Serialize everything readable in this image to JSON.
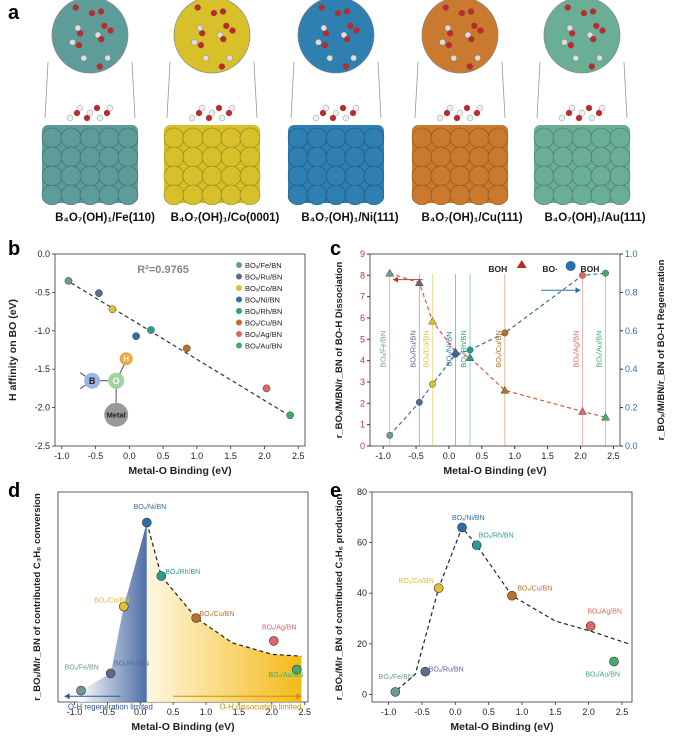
{
  "panel_letters": {
    "a": "a",
    "b": "b",
    "c": "c",
    "d": "d",
    "e": "e"
  },
  "panel_a": {
    "structures": [
      {
        "label": "B₄O₇(OH)₁/Fe(110)",
        "color": "#5e9c9a"
      },
      {
        "label": "B₄O₇(OH)₁/Co(0001)",
        "color": "#d8c02a"
      },
      {
        "label": "B₄O₇(OH)₁/Ni(111)",
        "color": "#2f7fb0"
      },
      {
        "label": "B₄O₇(OH)₁/Cu(111)",
        "color": "#c97a2e"
      },
      {
        "label": "B₄O₇(OH)₁/Au(111)",
        "color": "#6aae96"
      }
    ]
  },
  "chart_data": [
    {
      "id": "b",
      "type": "scatter",
      "xlabel": "Metal-O Binding (eV)",
      "ylabel": "H affinity on BO (eV)",
      "xlim": [
        -1.1,
        2.6
      ],
      "ylim": [
        -2.5,
        0.0
      ],
      "xticks": [
        "-1.0",
        "-0.5",
        "0.0",
        "0.5",
        "1.0",
        "1.5",
        "2.0",
        "2.5"
      ],
      "yticks": [
        "0.0",
        "-0.5",
        "-1.0",
        "-1.5",
        "-2.0",
        "-2.5"
      ],
      "r2": "R²=0.9765",
      "fit": {
        "x": [
          -0.95,
          2.4
        ],
        "y": [
          -0.33,
          -2.12
        ]
      },
      "points": [
        {
          "name": "BOₓ/Fe/BN",
          "x": -0.9,
          "y": -0.35,
          "color": "#6c9a96"
        },
        {
          "name": "BOₓ/Ru/BN",
          "x": -0.45,
          "y": -0.51,
          "color": "#5a6c8e"
        },
        {
          "name": "BOₓ/Co/BN",
          "x": -0.25,
          "y": -0.72,
          "color": "#e3be2d"
        },
        {
          "name": "BOₓ/Ni/BN",
          "x": 0.1,
          "y": -1.07,
          "color": "#2c6fa8"
        },
        {
          "name": "BOₓ/Rh/BN",
          "x": 0.32,
          "y": -0.99,
          "color": "#2b9b96"
        },
        {
          "name": "BOₓ/Cu/BN",
          "x": 0.85,
          "y": -1.23,
          "color": "#b8702a"
        },
        {
          "name": "BOₓ/Ag/BN",
          "x": 2.03,
          "y": -1.75,
          "color": "#e06666"
        },
        {
          "name": "BOₓ/Au/BN",
          "x": 2.38,
          "y": -2.1,
          "color": "#3fae6a"
        }
      ],
      "inset": {
        "b": "B",
        "o": "O",
        "h": "H",
        "metal": "Metal"
      }
    },
    {
      "id": "c",
      "type": "line",
      "xlabel": "Metal-O Binding (eV)",
      "ylabel_left": "r_BOₓ/M/BN/r_BN of BO-H Dissociation",
      "ylabel_right": "r_BOₓ/M/BN/r_BN of BO-H Regeneration",
      "xlim": [
        -1.2,
        2.6
      ],
      "ylim_left": [
        0,
        9
      ],
      "ylim_right": [
        0,
        1.0
      ],
      "xticks": [
        "-1.0",
        "-0.5",
        "0.0",
        "0.5",
        "1.0",
        "1.5",
        "2.0",
        "2.5"
      ],
      "yticks_left": [
        "0",
        "1",
        "2",
        "3",
        "4",
        "5",
        "6",
        "7",
        "8",
        "9"
      ],
      "yticks_right": [
        "0.0",
        "0.2",
        "0.4",
        "0.6",
        "0.8",
        "1.0"
      ],
      "legend_text": {
        "boh": "BOH",
        "bo": "BO·",
        "boh2": "BOH"
      },
      "dissociation": [
        {
          "x": -0.9,
          "y": 0.5
        },
        {
          "x": -0.45,
          "y": 2.05
        },
        {
          "x": -0.25,
          "y": 2.9
        },
        {
          "x": 0.1,
          "y": 4.3
        },
        {
          "x": 0.32,
          "y": 4.5
        },
        {
          "x": 0.85,
          "y": 5.3
        },
        {
          "x": 2.03,
          "y": 8.0
        },
        {
          "x": 2.38,
          "y": 8.1
        }
      ],
      "regeneration": [
        {
          "x": -0.9,
          "y": 0.9
        },
        {
          "x": -0.45,
          "y": 0.85
        },
        {
          "x": -0.25,
          "y": 0.65
        },
        {
          "x": 0.1,
          "y": 0.49
        },
        {
          "x": 0.32,
          "y": 0.46
        },
        {
          "x": 0.85,
          "y": 0.29
        },
        {
          "x": 2.03,
          "y": 0.18
        },
        {
          "x": 2.38,
          "y": 0.15
        }
      ],
      "labels": [
        {
          "text": "BOₓ/Fe/BN",
          "x": -0.9,
          "color": "#6c9a96"
        },
        {
          "text": "BOₓ/Ru/BN",
          "x": -0.45,
          "color": "#5a6c8e"
        },
        {
          "text": "BOₓ/Co/BN",
          "x": -0.25,
          "color": "#e3be2d"
        },
        {
          "text": "BOₓ/Ni/BN",
          "x": 0.1,
          "color": "#2c6fa8"
        },
        {
          "text": "BOₓ/Rh/BN",
          "x": 0.32,
          "color": "#2b9b96"
        },
        {
          "text": "BOₓ/Cu/BN",
          "x": 0.85,
          "color": "#b8702a"
        },
        {
          "text": "BOₓ/Ag/BN",
          "x": 2.03,
          "color": "#e06666"
        },
        {
          "text": "BOₓ/Au/BN",
          "x": 2.38,
          "color": "#3fae6a"
        }
      ]
    },
    {
      "id": "d",
      "type": "scatter",
      "xlabel": "Metal-O Binding (eV)",
      "ylabel": "r_BOₓ/M/r_BN of contributed C₃H₆ conversion",
      "xlim": [
        -1.25,
        2.55
      ],
      "ylim": [
        -5,
        105
      ],
      "xticks": [
        "-1.0",
        "-0.5",
        "0.0",
        "0.5",
        "1.0",
        "1.5",
        "2.0",
        "2.5"
      ],
      "regions": {
        "left": "O-H regeneration limited",
        "right": "O-H dissociation limited"
      },
      "points": [
        {
          "name": "BOₓ/Fe/BN",
          "x": -0.9,
          "y": 1,
          "color": "#6c9a96"
        },
        {
          "name": "BOₓ/Ru/BN",
          "x": -0.45,
          "y": 10,
          "color": "#5a6c8e"
        },
        {
          "name": "BOₓ/Co/BN",
          "x": -0.25,
          "y": 45,
          "color": "#e3be2d"
        },
        {
          "name": "BOₓ/Ni/BN",
          "x": 0.1,
          "y": 89,
          "color": "#2c6fa8"
        },
        {
          "name": "BOₓ/Rh/BN",
          "x": 0.32,
          "y": 61,
          "color": "#2b9b96"
        },
        {
          "name": "BOₓ/Cu/BN",
          "x": 0.85,
          "y": 39,
          "color": "#b8702a"
        },
        {
          "name": "BOₓ/Ag/BN",
          "x": 2.03,
          "y": 27,
          "color": "#e06666"
        },
        {
          "name": "BOₓ/Au/BN",
          "x": 2.38,
          "y": 12,
          "color": "#3fae6a"
        }
      ]
    },
    {
      "id": "e",
      "type": "scatter",
      "xlabel": "Metal-O Binding (eV)",
      "ylabel": "r_BOₓ/M/r_BN of contributed C₃H₆ production",
      "xlim": [
        -1.25,
        2.65
      ],
      "ylim": [
        -3,
        80
      ],
      "xticks": [
        "-1.0",
        "-0.5",
        "0.0",
        "0.5",
        "1.0",
        "1.5",
        "2.0",
        "2.5"
      ],
      "yticks": [
        "0",
        "20",
        "40",
        "60",
        "80"
      ],
      "points": [
        {
          "name": "BOₓ/Fe/BN",
          "x": -0.9,
          "y": 1,
          "color": "#6c9a96"
        },
        {
          "name": "BOₓ/Ru/BN",
          "x": -0.45,
          "y": 9,
          "color": "#5a6c8e"
        },
        {
          "name": "BOₓ/Co/BN",
          "x": -0.25,
          "y": 42,
          "color": "#e3be2d"
        },
        {
          "name": "BOₓ/Ni/BN",
          "x": 0.1,
          "y": 66,
          "color": "#2c6fa8"
        },
        {
          "name": "BOₓ/Rh/BN",
          "x": 0.32,
          "y": 59,
          "color": "#2b9b96"
        },
        {
          "name": "BOₓ/Cu/BN",
          "x": 0.85,
          "y": 39,
          "color": "#b8702a"
        },
        {
          "name": "BOₓ/Ag/BN",
          "x": 2.03,
          "y": 27,
          "color": "#e06666"
        },
        {
          "name": "BOₓ/Au/BN",
          "x": 2.38,
          "y": 13,
          "color": "#3fae6a"
        }
      ]
    }
  ]
}
